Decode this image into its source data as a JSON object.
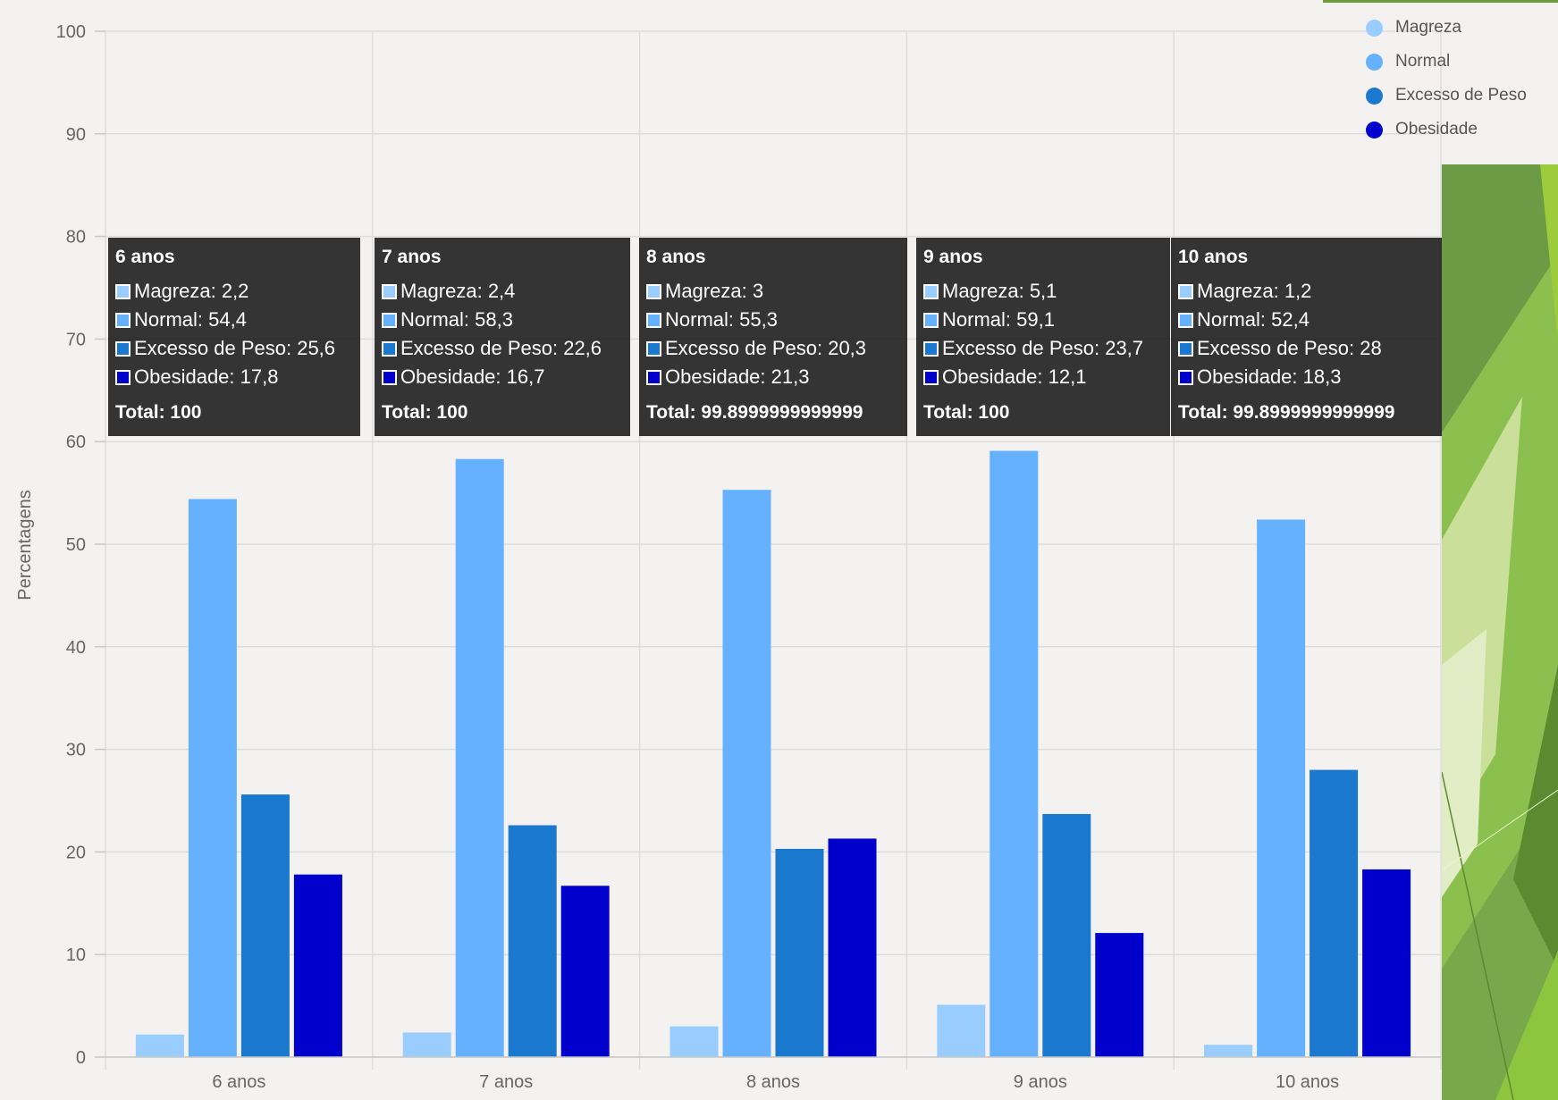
{
  "chart_data": {
    "type": "bar",
    "categories": [
      "6 anos",
      "7 anos",
      "8 anos",
      "9 anos",
      "10 anos"
    ],
    "series": [
      {
        "name": "Magreza",
        "values": [
          2.2,
          2.4,
          3,
          5.1,
          1.2
        ]
      },
      {
        "name": "Normal",
        "values": [
          54.4,
          58.3,
          55.3,
          59.1,
          52.4
        ]
      },
      {
        "name": "Excesso de Peso",
        "values": [
          25.6,
          22.6,
          20.3,
          23.7,
          28
        ]
      },
      {
        "name": "Obesidade",
        "values": [
          17.8,
          16.7,
          21.3,
          12.1,
          18.3
        ]
      }
    ],
    "colors": [
      "#99ccff",
      "#66b1ff",
      "#1a78cf",
      "#0000cc"
    ],
    "ylabel": "Percentagens",
    "ylim": [
      0,
      100
    ],
    "yticks": [
      0,
      10,
      20,
      30,
      40,
      50,
      60,
      70,
      80,
      90,
      100
    ],
    "grid": true,
    "legend_position": "top-right"
  },
  "tooltips": [
    {
      "title": "6 anos",
      "rows": [
        "Magreza: 2,2",
        "Normal: 54,4",
        "Excesso de Peso: 25,6",
        "Obesidade: 17,8"
      ],
      "total": "Total: 100"
    },
    {
      "title": "7 anos",
      "rows": [
        "Magreza: 2,4",
        "Normal: 58,3",
        "Excesso de Peso: 22,6",
        "Obesidade: 16,7"
      ],
      "total": "Total: 100"
    },
    {
      "title": "8 anos",
      "rows": [
        "Magreza: 3",
        "Normal: 55,3",
        "Excesso de Peso: 20,3",
        "Obesidade: 21,3"
      ],
      "total": "Total: 99.8999999999999"
    },
    {
      "title": "9 anos",
      "rows": [
        "Magreza: 5,1",
        "Normal: 59,1",
        "Excesso de Peso: 23,7",
        "Obesidade: 12,1"
      ],
      "total": "Total: 100"
    },
    {
      "title": "10 anos",
      "rows": [
        "Magreza: 1,2",
        "Normal: 52,4",
        "Excesso de Peso: 28",
        "Obesidade: 18,3"
      ],
      "total": "Total: 99.8999999999999"
    }
  ]
}
